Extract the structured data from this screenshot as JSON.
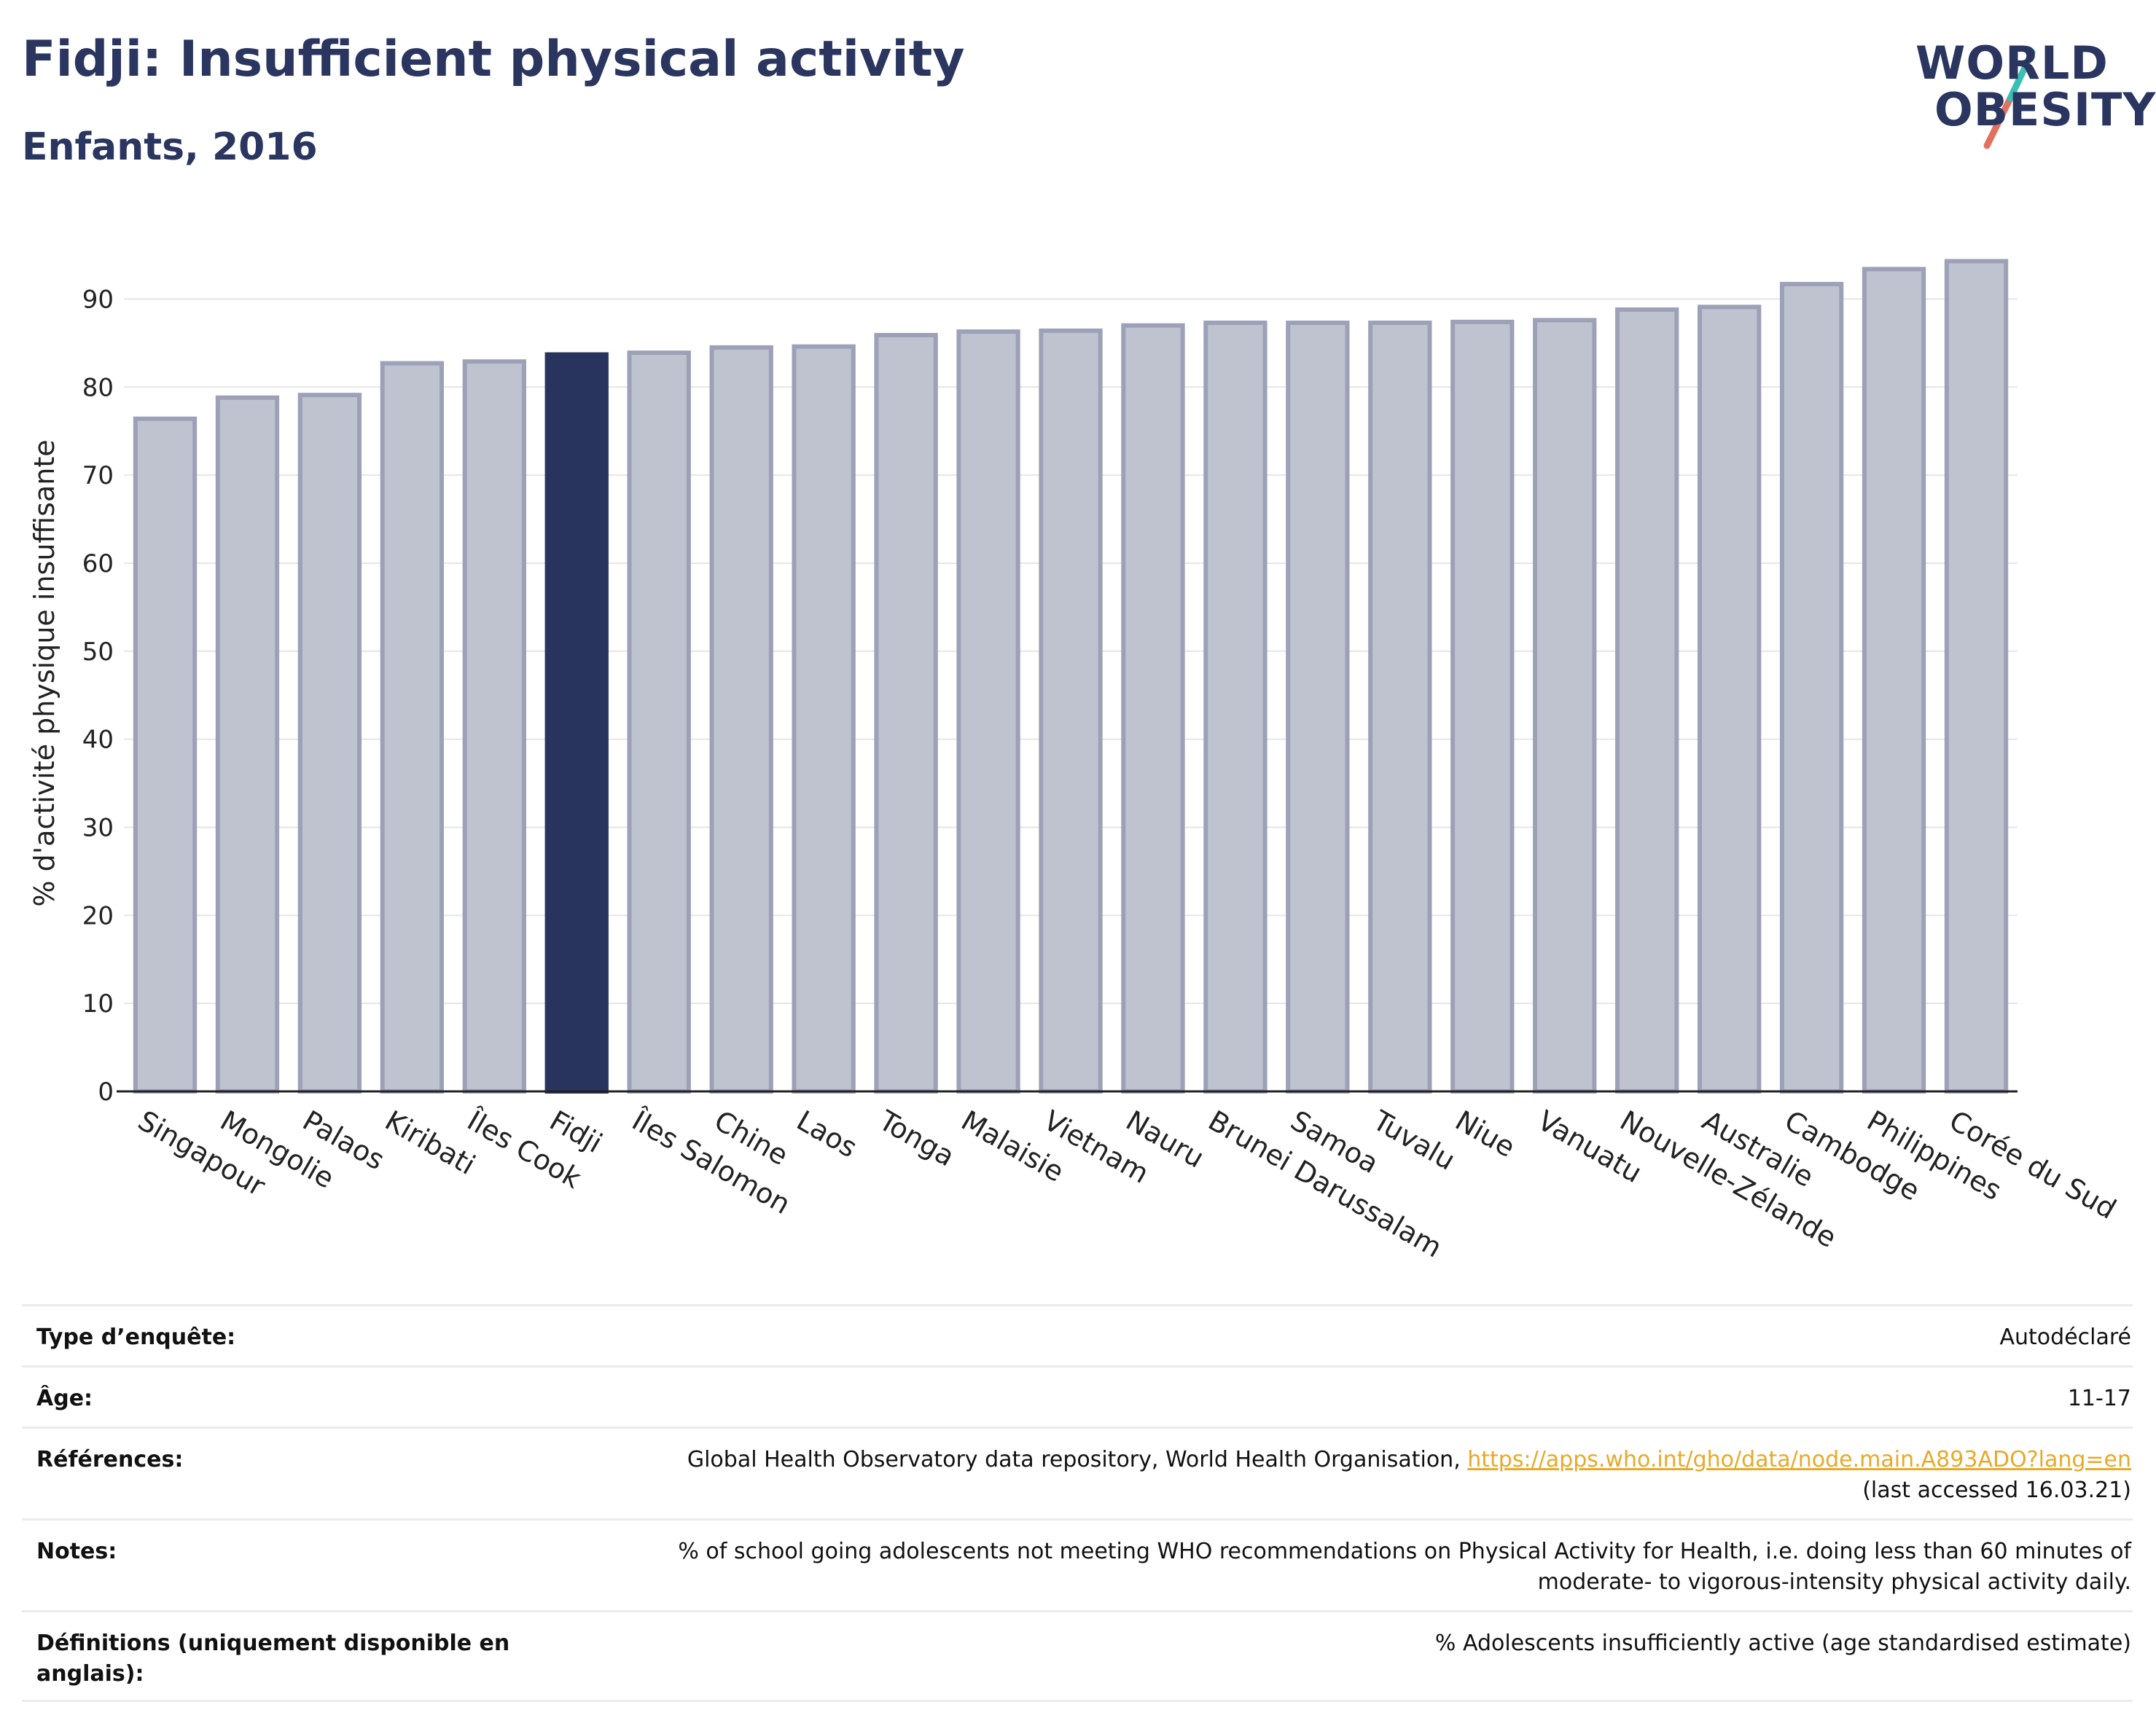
{
  "header": {
    "title": "Fidji: Insufficient physical activity",
    "subtitle": "Enfants, 2016"
  },
  "logo": {
    "line1": "WORLD",
    "line2": "OBESITY",
    "colors": {
      "text": "#2a3560",
      "slash_teal": "#3bbfb5",
      "slash_coral": "#e2705e"
    }
  },
  "colors": {
    "bar": "#bfc2cf",
    "bar_border": "#9ca1b8",
    "highlight": "#29345e",
    "axis": "#222222",
    "grid": "#e6e6e6"
  },
  "chart_data": {
    "type": "bar",
    "ylabel": "% d'activité physique insuffisante",
    "ylim": [
      0,
      95
    ],
    "yticks": [
      0,
      10,
      20,
      30,
      40,
      50,
      60,
      70,
      80,
      90
    ],
    "grid": true,
    "highlight": "Fidji",
    "categories": [
      "Singapour",
      "Mongolie",
      "Palaos",
      "Kiribati",
      "Îles Cook",
      "Fidji",
      "Îles Salomon",
      "Chine",
      "Laos",
      "Tonga",
      "Malaisie",
      "Vietnam",
      "Nauru",
      "Brunei Darussalam",
      "Samoa",
      "Tuvalu",
      "Niue",
      "Vanuatu",
      "Nouvelle-Zélande",
      "Australie",
      "Cambodge",
      "Philippines",
      "Corée du Sud"
    ],
    "values": [
      76.4,
      78.8,
      79.1,
      82.7,
      82.9,
      83.7,
      83.9,
      84.5,
      84.6,
      85.9,
      86.3,
      86.4,
      87.0,
      87.3,
      87.3,
      87.3,
      87.4,
      87.6,
      88.8,
      89.1,
      91.7,
      93.4,
      94.3
    ]
  },
  "info_table": {
    "survey_type": {
      "label": "Type d’enquête:",
      "value": "Autodéclaré"
    },
    "age": {
      "label": "Âge:",
      "value": "11-17"
    },
    "references": {
      "label": "Références:",
      "text": "Global Health Observatory data repository, World Health Organisation, ",
      "link": "https://apps.who.int/gho/data/node.main.A893ADO?lang=en",
      "accessed": "(last accessed 16.03.21)"
    },
    "notes": {
      "label": "Notes:",
      "line1": "% of school going adolescents not meeting WHO recommendations on Physical Activity for Health, i.e. doing less than 60 minutes of",
      "line2": "moderate- to vigorous-intensity physical activity daily."
    },
    "definitions": {
      "label": "Définitions (uniquement disponible en anglais):",
      "value": "% Adolescents insufficiently active (age standardised estimate)"
    }
  }
}
